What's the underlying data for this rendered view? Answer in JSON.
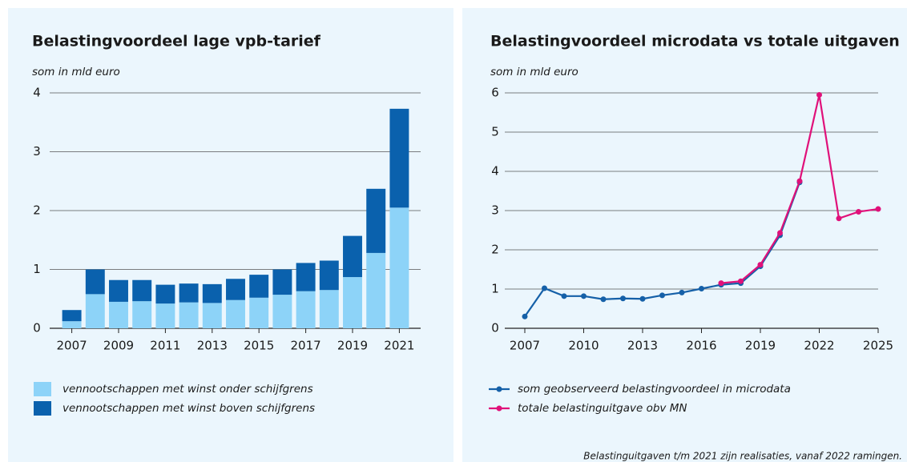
{
  "chart_data": [
    {
      "type": "bar",
      "stacked": true,
      "title": "Belastingvoordeel lage vpb-tarief",
      "subtitle": "som in mld euro",
      "categories": [
        "2007",
        null,
        "2009",
        null,
        "2011",
        null,
        "2013",
        null,
        "2015",
        null,
        "2017",
        null,
        "2019",
        null,
        "2021"
      ],
      "series": [
        {
          "name": "vennootschappen met winst onder schijfgrens",
          "color": "#8dd3f8",
          "values": [
            0.12,
            0.58,
            0.45,
            0.46,
            0.42,
            0.44,
            0.43,
            0.48,
            0.52,
            0.57,
            0.63,
            0.65,
            0.87,
            1.28,
            2.05
          ]
        },
        {
          "name": "vennootschappen met winst boven schijfgrens",
          "color": "#0a61ad",
          "values": [
            0.19,
            0.42,
            0.37,
            0.36,
            0.32,
            0.32,
            0.32,
            0.36,
            0.39,
            0.43,
            0.48,
            0.5,
            0.7,
            1.09,
            1.68
          ]
        }
      ],
      "ylim": [
        0,
        4
      ],
      "yticks": [
        0,
        1,
        2,
        3,
        4
      ],
      "grid": true
    },
    {
      "type": "line",
      "title": "Belastingvoordeel microdata vs totale uitgaven",
      "subtitle": "som in mld euro",
      "x": [
        2007,
        2008,
        2009,
        2010,
        2011,
        2012,
        2013,
        2014,
        2015,
        2016,
        2017,
        2018,
        2019,
        2020,
        2021,
        2022,
        2023,
        2024,
        2025
      ],
      "series": [
        {
          "name": "som geobserveerd belastingvoordeel in microdata",
          "color": "#1560a8",
          "values": [
            0.3,
            1.02,
            0.82,
            0.82,
            0.74,
            0.76,
            0.75,
            0.84,
            0.91,
            1.01,
            1.11,
            1.15,
            1.58,
            2.37,
            3.72,
            null,
            null,
            null,
            null
          ]
        },
        {
          "name": "totale belastinguitgave obv MN",
          "color": "#e0117a",
          "values": [
            null,
            null,
            null,
            null,
            null,
            null,
            null,
            null,
            null,
            null,
            1.15,
            1.2,
            1.62,
            2.43,
            3.75,
            5.95,
            2.8,
            2.97,
            3.04
          ]
        }
      ],
      "xlim": [
        2007,
        2025
      ],
      "xticks": [
        2007,
        2010,
        2013,
        2016,
        2019,
        2022,
        2025
      ],
      "ylim": [
        0,
        6
      ],
      "yticks": [
        0,
        1,
        2,
        3,
        4,
        5,
        6
      ],
      "grid": true
    }
  ],
  "note": "Belastinguitgaven t/m 2021 zijn realisaties, vanaf 2022 ramingen."
}
